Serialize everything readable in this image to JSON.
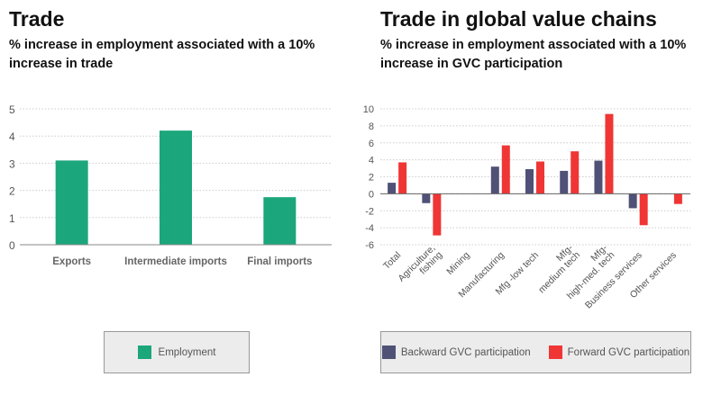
{
  "chart_data": [
    {
      "type": "bar",
      "title": "Trade",
      "subtitle": "% increase in employment associated with a 10% increase in trade",
      "categories": [
        "Exports",
        "Intermediate imports",
        "Final imports"
      ],
      "series": [
        {
          "name": "Employment",
          "values": [
            3.1,
            4.2,
            1.75
          ],
          "color": "#1ba67b"
        }
      ],
      "ylim": [
        0,
        5
      ],
      "yticks": [
        "0",
        "1",
        "2",
        "3",
        "4",
        "5"
      ],
      "grid": true,
      "legend": "bottom"
    },
    {
      "type": "bar",
      "title": "Trade in global value chains",
      "subtitle": "% increase in employment associated with a 10% increase in GVC participation",
      "categories": [
        "Total",
        "Agriculture, fishing",
        "Mining",
        "Manufacturing",
        "Mfg -low tech",
        "Mfg- medium tech",
        "Mfg- high-med. tech",
        "Business services",
        "Other services"
      ],
      "series": [
        {
          "name": "Backward GVC participation",
          "values": [
            1.3,
            -1.1,
            0,
            3.2,
            2.9,
            2.7,
            3.9,
            -1.7,
            0
          ],
          "color": "#4f5177"
        },
        {
          "name": "Forward GVC participation",
          "values": [
            3.7,
            -4.9,
            0,
            5.7,
            3.8,
            5.0,
            9.4,
            -3.7,
            -1.2
          ],
          "color": "#f03535"
        }
      ],
      "ylim": [
        -6,
        10
      ],
      "yticks": [
        "-6",
        "-4",
        "-2",
        "0",
        "2",
        "4",
        "6",
        "8",
        "10"
      ],
      "grid": true,
      "legend": "bottom"
    }
  ]
}
